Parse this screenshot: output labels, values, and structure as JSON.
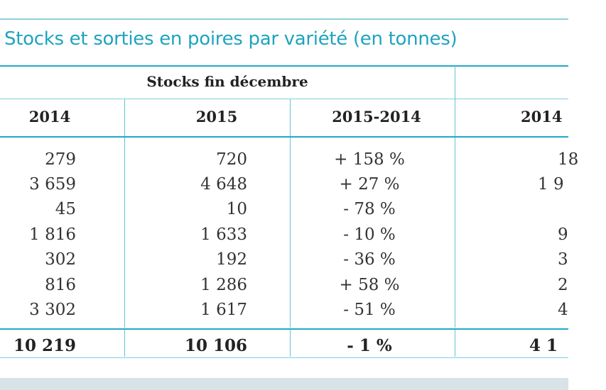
{
  "title": "Stocks et sorties en poires par variété (en tonnes)",
  "group_header": "Stocks fin décembre",
  "columns": [
    "2014",
    "2015",
    "2015-2014",
    "2014"
  ],
  "rows": [
    {
      "y2014": "279",
      "y2015": "720",
      "change": "+ 158 %",
      "next": "18"
    },
    {
      "y2014": "3 659",
      "y2015": "4 648",
      "change": "+ 27 %",
      "next": "1 9"
    },
    {
      "y2014": "45",
      "y2015": "10",
      "change": "- 78 %",
      "next": ""
    },
    {
      "y2014": "1 816",
      "y2015": "1 633",
      "change": "- 10 %",
      "next": "9"
    },
    {
      "y2014": "302",
      "y2015": "192",
      "change": "- 36 %",
      "next": "3"
    },
    {
      "y2014": "816",
      "y2015": "1 286",
      "change": "+ 58 %",
      "next": "2"
    },
    {
      "y2014": "3 302",
      "y2015": "1 617",
      "change": "- 51 %",
      "next": "4"
    }
  ],
  "total": {
    "y2014": "10 219",
    "y2015": "10 106",
    "change": "- 1 %",
    "next": "4 1"
  },
  "colors": {
    "accent": "#1fa3bf",
    "rule": "#22a9c6"
  }
}
